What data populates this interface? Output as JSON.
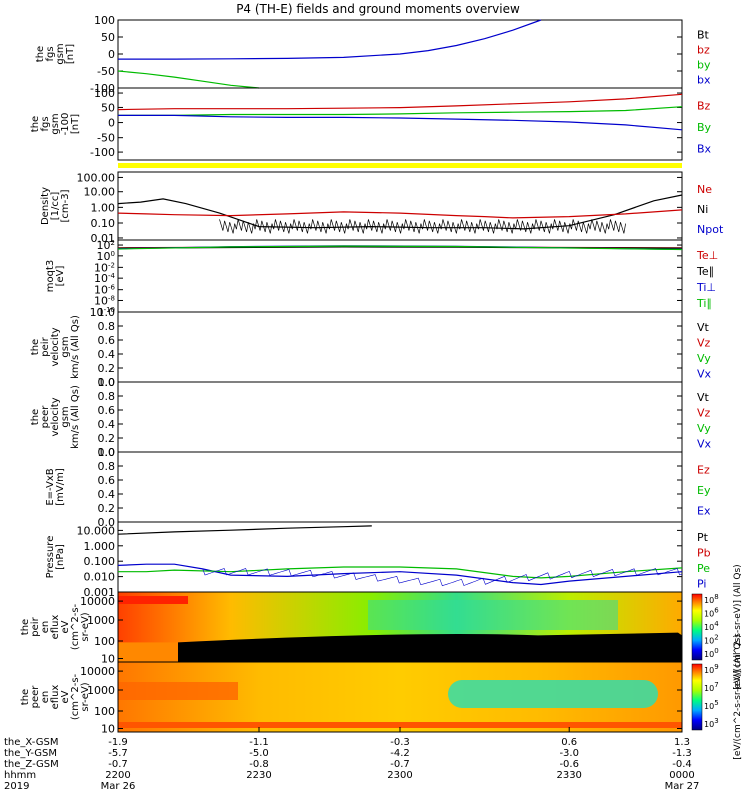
{
  "title": "P4 (TH-E) fields and ground moments overview",
  "colors": {
    "black": "#000000",
    "red": "#cc0000",
    "green": "#00bb00",
    "blue": "#0000cc",
    "yellow": "#ffff00"
  },
  "chart_data": {
    "type": "line",
    "time_range": [
      "2200",
      "0000"
    ],
    "x_ticks": {
      "the_X-GSM": [
        "-1.9",
        "-1.1",
        "-0.3",
        "0.6",
        "1.3"
      ],
      "the_Y-GSM": [
        "-5.7",
        "-5.0",
        "-4.2",
        "-3.0",
        "-1.3"
      ],
      "the_Z-GSM": [
        "-0.7",
        "-0.8",
        "-0.7",
        "-0.6",
        "-0.4"
      ],
      "hhmm": [
        "2200",
        "2230",
        "2300",
        "2330",
        "0000"
      ],
      "date": [
        "Mar 26",
        "",
        "",
        "",
        "Mar 27"
      ]
    },
    "x_row_labels": [
      "the_X-GSM",
      "the_Y-GSM",
      "the_Z-GSM",
      "hhmm",
      "2019"
    ],
    "panels": [
      {
        "id": "fgs",
        "ylabel": [
          "the",
          "fgs",
          "gsm",
          "[nT]"
        ],
        "ylim": [
          -100,
          100
        ],
        "yticks": [
          "100",
          "50",
          "0",
          "-50",
          "-100"
        ],
        "legend": [
          {
            "label": "Bt",
            "color": "black"
          },
          {
            "label": "bz",
            "color": "red"
          },
          {
            "label": "by",
            "color": "green"
          },
          {
            "label": "bx",
            "color": "blue"
          }
        ],
        "series": [
          {
            "color": "blue",
            "x": [
              0,
              0.1,
              0.2,
              0.3,
              0.4,
              0.5,
              0.55,
              0.6,
              0.65,
              0.7,
              0.75
            ],
            "y": [
              -15,
              -15,
              -14,
              -13,
              -10,
              0,
              10,
              25,
              45,
              70,
              100
            ]
          },
          {
            "color": "green",
            "x": [
              0,
              0.05,
              0.1,
              0.15,
              0.2,
              0.25
            ],
            "y": [
              -50,
              -58,
              -68,
              -80,
              -92,
              -100
            ]
          }
        ]
      },
      {
        "id": "fgs_lowres",
        "ylabel": [
          "the",
          "fgs",
          "gsm",
          "-100",
          "[nT]"
        ],
        "ylim": [
          -150,
          100
        ],
        "yticks": [
          "100",
          "50",
          "0",
          "-50",
          "-100"
        ],
        "legend": [
          {
            "label": "Bz",
            "color": "red"
          },
          {
            "label": "By",
            "color": "green"
          },
          {
            "label": "Bx",
            "color": "blue"
          }
        ],
        "series": [
          {
            "color": "red",
            "x": [
              0,
              0.1,
              0.2,
              0.3,
              0.4,
              0.5,
              0.6,
              0.7,
              0.8,
              0.9,
              1
            ],
            "y": [
              25,
              28,
              28,
              28,
              30,
              32,
              38,
              45,
              52,
              62,
              78
            ]
          },
          {
            "color": "green",
            "x": [
              0,
              0.1,
              0.2,
              0.3,
              0.4,
              0.5,
              0.6,
              0.7,
              0.8,
              0.9,
              1
            ],
            "y": [
              5,
              5,
              8,
              8,
              8,
              10,
              14,
              16,
              18,
              22,
              35
            ]
          },
          {
            "color": "blue",
            "x": [
              0,
              0.1,
              0.2,
              0.3,
              0.4,
              0.5,
              0.6,
              0.7,
              0.8,
              0.9,
              1
            ],
            "y": [
              5,
              5,
              0,
              -2,
              -2,
              -4,
              -8,
              -12,
              -18,
              -28,
              -45
            ]
          }
        ]
      },
      {
        "id": "density",
        "ylabel": [
          "Density",
          "[1/cc]",
          "[cm-3]"
        ],
        "ylim": [
          0.01,
          200
        ],
        "log": true,
        "yticks": [
          "100.00",
          "10.00",
          "1.00",
          "0.10",
          "0.01"
        ],
        "legend": [
          {
            "label": "Ne",
            "color": "red"
          },
          {
            "label": "Ni",
            "color": "black"
          },
          {
            "label": "Npot",
            "color": "blue"
          }
        ],
        "series": [
          {
            "color": "black",
            "x": [
              0,
              0.04,
              0.08,
              0.12,
              0.18,
              0.25,
              0.35,
              0.45,
              0.55,
              0.65,
              0.72,
              0.8,
              0.88,
              0.95,
              1
            ],
            "y": [
              2,
              2.5,
              4,
              2,
              0.5,
              0.07,
              0.06,
              0.07,
              0.06,
              0.06,
              0.05,
              0.08,
              0.4,
              3,
              7
            ]
          },
          {
            "color": "red",
            "x": [
              0,
              0.05,
              0.1,
              0.2,
              0.3,
              0.4,
              0.5,
              0.6,
              0.65,
              0.7,
              0.8,
              0.9,
              1
            ],
            "y": [
              0.5,
              0.45,
              0.4,
              0.35,
              0.45,
              0.6,
              0.5,
              0.35,
              0.3,
              0.25,
              0.3,
              0.45,
              0.8
            ]
          }
        ]
      },
      {
        "id": "temperature",
        "ylabel": [
          "moqt3",
          "[eV]"
        ],
        "ylim": [
          1e-10,
          10000.0
        ],
        "log": true,
        "yticks": [
          "10^2",
          "10^0",
          "10^-2",
          "10^-4",
          "10^-6",
          "10^-8",
          "10^-10"
        ],
        "legend": [
          {
            "label": "Te⊥",
            "color": "red"
          },
          {
            "label": "Te∥",
            "color": "black"
          },
          {
            "label": "Ti⊥",
            "color": "blue"
          },
          {
            "label": "Ti∥",
            "color": "green"
          }
        ],
        "series": [
          {
            "color": "red",
            "x": [
              0,
              0.2,
              0.4,
              0.6,
              0.8,
              1
            ],
            "y": [
              300,
              400,
              500,
              450,
              350,
              300
            ]
          },
          {
            "color": "black",
            "x": [
              0,
              0.2,
              0.4,
              0.6,
              0.8,
              1
            ],
            "y": [
              250,
              350,
              450,
              400,
              300,
              250
            ]
          },
          {
            "color": "blue",
            "x": [
              0,
              0.2,
              0.4,
              0.6,
              0.8,
              1
            ],
            "y": [
              200,
              500,
              700,
              600,
              300,
              150
            ]
          },
          {
            "color": "green",
            "x": [
              0,
              0.2,
              0.4,
              0.6,
              0.8,
              1
            ],
            "y": [
              180,
              450,
              650,
              550,
              280,
              140
            ]
          }
        ]
      },
      {
        "id": "peir_velocity",
        "ylabel": [
          "the",
          "peir",
          "velocity",
          "gsm",
          "km/s (All Qs)"
        ],
        "ylim": [
          0,
          1
        ],
        "yticks": [
          "1.0",
          "0.8",
          "0.6",
          "0.4",
          "0.2",
          "0.0"
        ],
        "legend": [
          {
            "label": "Vt",
            "color": "black"
          },
          {
            "label": "Vz",
            "color": "red"
          },
          {
            "label": "Vy",
            "color": "green"
          },
          {
            "label": "Vx",
            "color": "blue"
          }
        ],
        "series": []
      },
      {
        "id": "peer_velocity",
        "ylabel": [
          "the",
          "peer",
          "velocity",
          "gsm",
          "km/s (All Qs)"
        ],
        "ylim": [
          0,
          1
        ],
        "yticks": [
          "1.0",
          "0.8",
          "0.6",
          "0.4",
          "0.2",
          "0.0"
        ],
        "legend": [
          {
            "label": "Vt",
            "color": "black"
          },
          {
            "label": "Vz",
            "color": "red"
          },
          {
            "label": "Vy",
            "color": "green"
          },
          {
            "label": "Vx",
            "color": "blue"
          }
        ],
        "series": []
      },
      {
        "id": "efield",
        "ylabel": [
          "E=-VxB",
          "[mV/m]"
        ],
        "ylim": [
          0,
          1
        ],
        "yticks": [
          "1.0",
          "0.8",
          "0.6",
          "0.4",
          "0.2",
          "0.0"
        ],
        "legend": [
          {
            "label": "Ez",
            "color": "red"
          },
          {
            "label": "Ey",
            "color": "green"
          },
          {
            "label": "Ex",
            "color": "blue"
          }
        ],
        "series": []
      },
      {
        "id": "pressure",
        "ylabel": [
          "Pressure",
          "[nPa]"
        ],
        "ylim": [
          0.001,
          30
        ],
        "log": true,
        "yticks": [
          "10.000",
          "1.000",
          "0.100",
          "0.010",
          "0.001"
        ],
        "legend": [
          {
            "label": "Pt",
            "color": "black"
          },
          {
            "label": "Pb",
            "color": "red"
          },
          {
            "label": "Pe",
            "color": "green"
          },
          {
            "label": "Pi",
            "color": "blue"
          }
        ],
        "series": [
          {
            "color": "black",
            "x": [
              0,
              0.1,
              0.2,
              0.3,
              0.4,
              0.45
            ],
            "y": [
              5,
              7,
              9,
              12,
              15,
              17
            ]
          },
          {
            "color": "blue",
            "x": [
              0,
              0.05,
              0.1,
              0.15,
              0.2,
              0.3,
              0.4,
              0.5,
              0.6,
              0.7,
              0.75,
              0.8,
              0.9,
              1
            ],
            "y": [
              0.05,
              0.06,
              0.06,
              0.03,
              0.012,
              0.01,
              0.015,
              0.02,
              0.012,
              0.004,
              0.003,
              0.005,
              0.01,
              0.02
            ]
          },
          {
            "color": "green",
            "x": [
              0,
              0.05,
              0.1,
              0.2,
              0.3,
              0.4,
              0.5,
              0.6,
              0.7,
              0.75,
              0.8,
              0.9,
              1
            ],
            "y": [
              0.02,
              0.02,
              0.025,
              0.02,
              0.03,
              0.04,
              0.04,
              0.03,
              0.01,
              0.008,
              0.01,
              0.02,
              0.035
            ]
          }
        ]
      },
      {
        "id": "peir_eflux",
        "type": "heatmap",
        "ylabel": [
          "the",
          "peir",
          "en",
          "eflux",
          "eV",
          "(cm^2-s-",
          "sr-eV)"
        ],
        "yticks": [
          "10000",
          "1000",
          "100",
          "10"
        ],
        "colorbar": {
          "ticks": [
            "10^8",
            "10^6",
            "10^4",
            "10^2",
            "10^0"
          ],
          "label": "[eV/(cm^2-s-sr-eV)] (All Qs)"
        }
      },
      {
        "id": "peer_eflux",
        "type": "heatmap",
        "ylabel": [
          "the",
          "peer",
          "en",
          "eflux",
          "eV",
          "(cm^2-s-",
          "sr-eV)"
        ],
        "yticks": [
          "10000",
          "1000",
          "100",
          "10"
        ],
        "colorbar": {
          "ticks": [
            "10^9",
            "10^7",
            "10^5",
            "10^3"
          ],
          "label": "[eV/(cm^2-s-sr-eV)] (All Qs)"
        }
      }
    ]
  }
}
